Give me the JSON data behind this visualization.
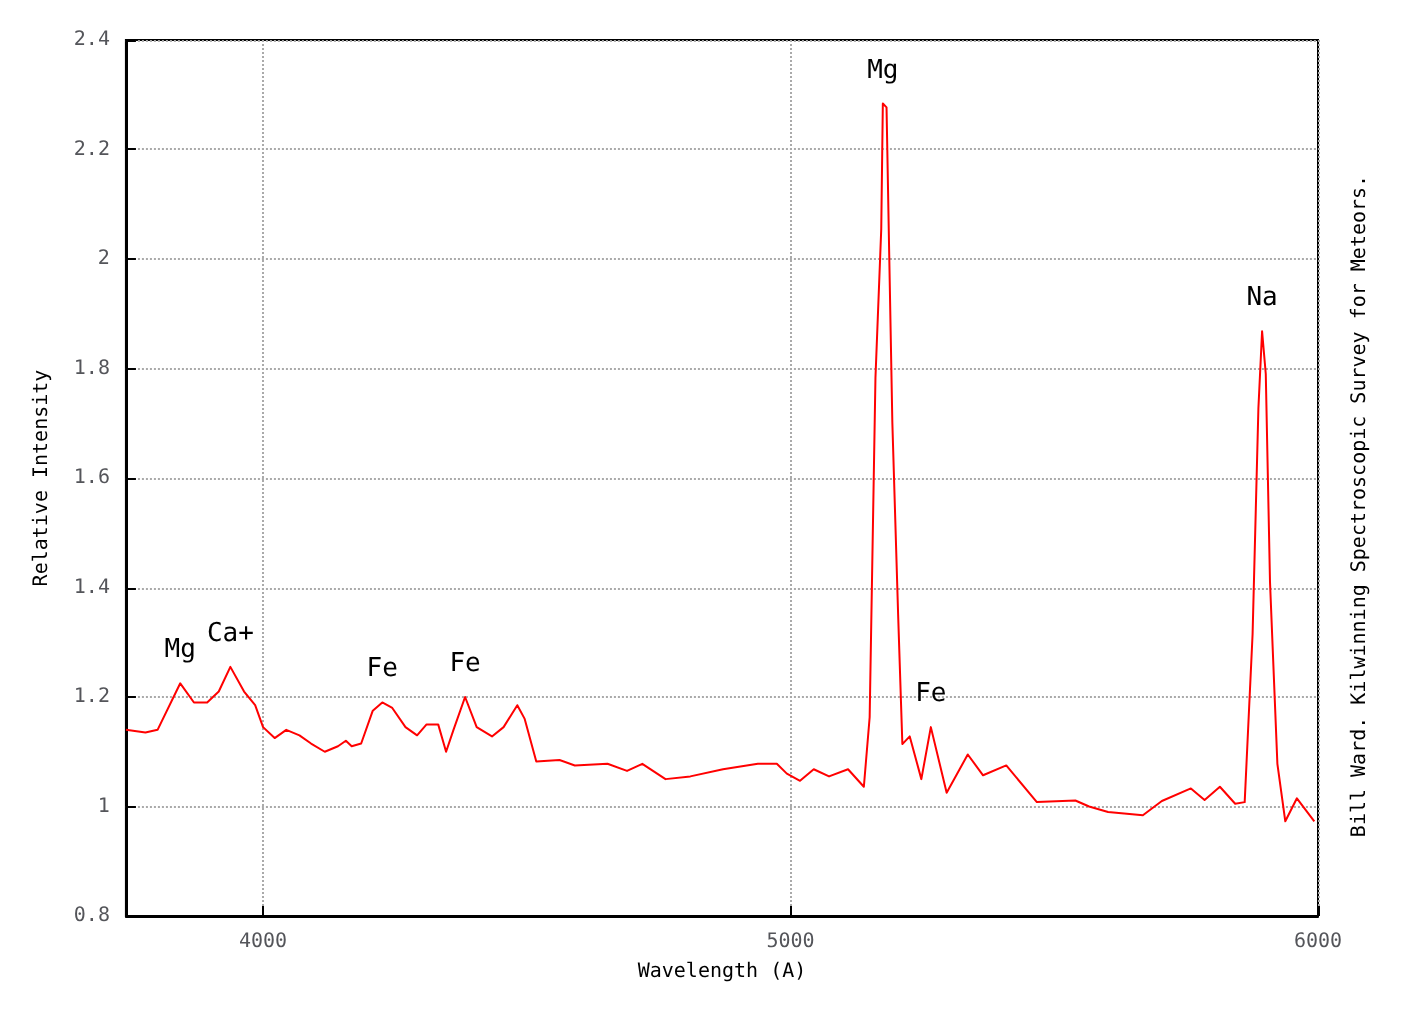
{
  "chart_data": {
    "type": "line",
    "xlabel": "Wavelength (A)",
    "ylabel": "Relative Intensity",
    "x": [
      3740,
      3777,
      3800,
      3843,
      3869,
      3894,
      3916,
      3938,
      3964,
      3985,
      4000,
      4022,
      4044,
      4069,
      4091,
      4117,
      4142,
      4157,
      4168,
      4186,
      4208,
      4226,
      4245,
      4270,
      4292,
      4310,
      4332,
      4347,
      4361,
      4383,
      4405,
      4434,
      4456,
      4482,
      4496,
      4518,
      4562,
      4591,
      4653,
      4690,
      4719,
      4763,
      4810,
      4872,
      4938,
      4974,
      4993,
      5018,
      5044,
      5073,
      5109,
      5139,
      5150,
      5161,
      5172,
      5175,
      5182,
      5186,
      5193,
      5204,
      5212,
      5226,
      5248,
      5266,
      5296,
      5336,
      5365,
      5409,
      5467,
      5540,
      5566,
      5602,
      5668,
      5704,
      5759,
      5785,
      5814,
      5843,
      5861,
      5876,
      5887,
      5894,
      5901,
      5909,
      5923,
      5938,
      5960,
      5993
    ],
    "series": [
      {
        "color": "#ff0000",
        "values": [
          1.14,
          1.135,
          1.14,
          1.225,
          1.19,
          1.19,
          1.21,
          1.255,
          1.21,
          1.185,
          1.145,
          1.125,
          1.14,
          1.13,
          1.115,
          1.1,
          1.11,
          1.12,
          1.11,
          1.115,
          1.175,
          1.19,
          1.18,
          1.145,
          1.13,
          1.15,
          1.15,
          1.1,
          1.14,
          1.2,
          1.145,
          1.128,
          1.145,
          1.185,
          1.16,
          1.082,
          1.085,
          1.075,
          1.078,
          1.065,
          1.078,
          1.05,
          1.055,
          1.068,
          1.078,
          1.078,
          1.06,
          1.047,
          1.068,
          1.055,
          1.068,
          1.036,
          1.163,
          1.783,
          2.055,
          2.284,
          2.277,
          2.065,
          1.702,
          1.35,
          1.114,
          1.128,
          1.05,
          1.145,
          1.025,
          1.095,
          1.057,
          1.075,
          1.008,
          1.011,
          1.0,
          0.99,
          0.984,
          1.01,
          1.033,
          1.012,
          1.036,
          1.005,
          1.008,
          1.315,
          1.727,
          1.868,
          1.79,
          1.41,
          1.078,
          0.973,
          1.015,
          0.973
        ]
      }
    ],
    "xlim": [
      3740,
      6000
    ],
    "xticks": [
      4000,
      5000,
      6000
    ],
    "ylim": [
      0.8,
      2.4
    ],
    "yticks": [
      0.8,
      1,
      1.2,
      1.4,
      1.6,
      1.8,
      2,
      2.2,
      2.4
    ],
    "grid": true,
    "marker": "none",
    "line_style": "solid",
    "annotations": [
      {
        "text": "Mg",
        "x": 3843,
        "y": 1.225
      },
      {
        "text": "Ca+",
        "x": 3938,
        "y": 1.255
      },
      {
        "text": "Fe",
        "x": 4226,
        "y": 1.19
      },
      {
        "text": "Fe",
        "x": 4383,
        "y": 1.2
      },
      {
        "text": "Mg",
        "x": 5175,
        "y": 2.284
      },
      {
        "text": "Fe",
        "x": 5266,
        "y": 1.145
      },
      {
        "text": "Na",
        "x": 5894,
        "y": 1.868
      },
      "Bill Ward. Kilwinning Spectroscopic Survey for Meteors."
    ]
  }
}
